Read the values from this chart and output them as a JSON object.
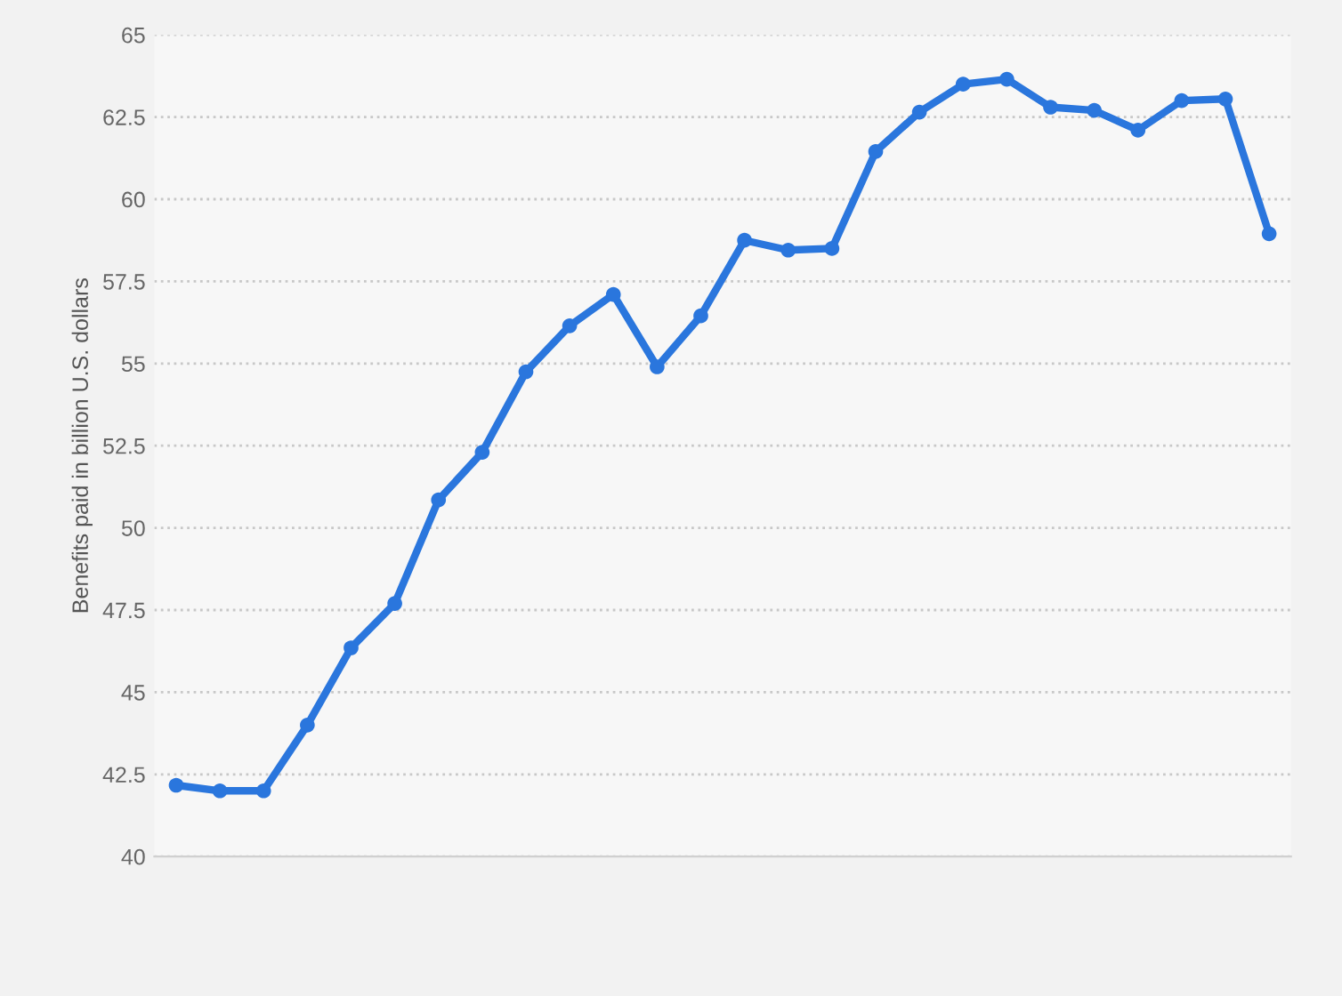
{
  "chart_data": {
    "type": "line",
    "ylabel": "Benefits paid in billion U.S. dollars",
    "categories": [
      null,
      null,
      null,
      null,
      null,
      null,
      null,
      null,
      null,
      null,
      null,
      null,
      null,
      null,
      null,
      null,
      null,
      null,
      null,
      null,
      null,
      null,
      null,
      null,
      null,
      null
    ],
    "series": [
      {
        "color": "#2a76dd",
        "values": [
          42.17,
          42.0,
          42.0,
          44.0,
          46.35,
          47.7,
          50.85,
          52.3,
          54.75,
          56.15,
          57.1,
          54.9,
          56.45,
          58.75,
          58.45,
          58.5,
          61.45,
          62.65,
          63.5,
          63.65,
          62.8,
          62.7,
          62.1,
          63.0,
          63.05,
          58.95
        ]
      }
    ],
    "ylim": [
      40,
      65
    ],
    "yticks": [
      40,
      42.5,
      45,
      47.5,
      50,
      52.5,
      55,
      57.5,
      60,
      62.5,
      65
    ],
    "grid": "y",
    "marker": "circle",
    "line_style": "solid"
  }
}
